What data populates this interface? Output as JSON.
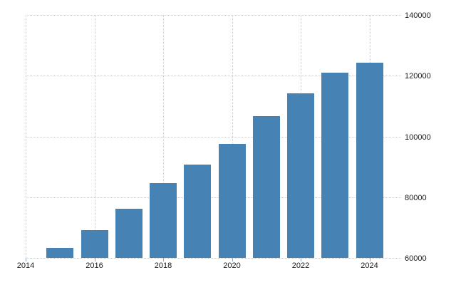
{
  "chart_data": {
    "type": "bar",
    "categories": [
      "2015",
      "2016",
      "2017",
      "2018",
      "2019",
      "2020",
      "2021",
      "2022",
      "2023",
      "2024"
    ],
    "values": [
      63400,
      69200,
      76200,
      84700,
      90700,
      97600,
      106800,
      114100,
      121100,
      124200
    ],
    "title": "",
    "xlabel": "",
    "ylabel": "",
    "ylim": [
      60000,
      140000
    ],
    "y_ticks": [
      60000,
      80000,
      100000,
      120000,
      140000
    ],
    "y_tick_labels": [
      "60000",
      "80000",
      "100000",
      "120000",
      "140000"
    ],
    "x_ticks": [
      2014,
      2016,
      2018,
      2020,
      2022,
      2024
    ],
    "x_tick_labels": [
      "2014",
      "2016",
      "2018",
      "2020",
      "2022",
      "2024"
    ],
    "grid": "dotted",
    "legend_position": "none",
    "colors": {
      "bar": "#4682b4",
      "grid": "#cccccc",
      "axis_tick": "#8fa8bf",
      "text": "#1a1a1a",
      "background": "#ffffff"
    }
  }
}
